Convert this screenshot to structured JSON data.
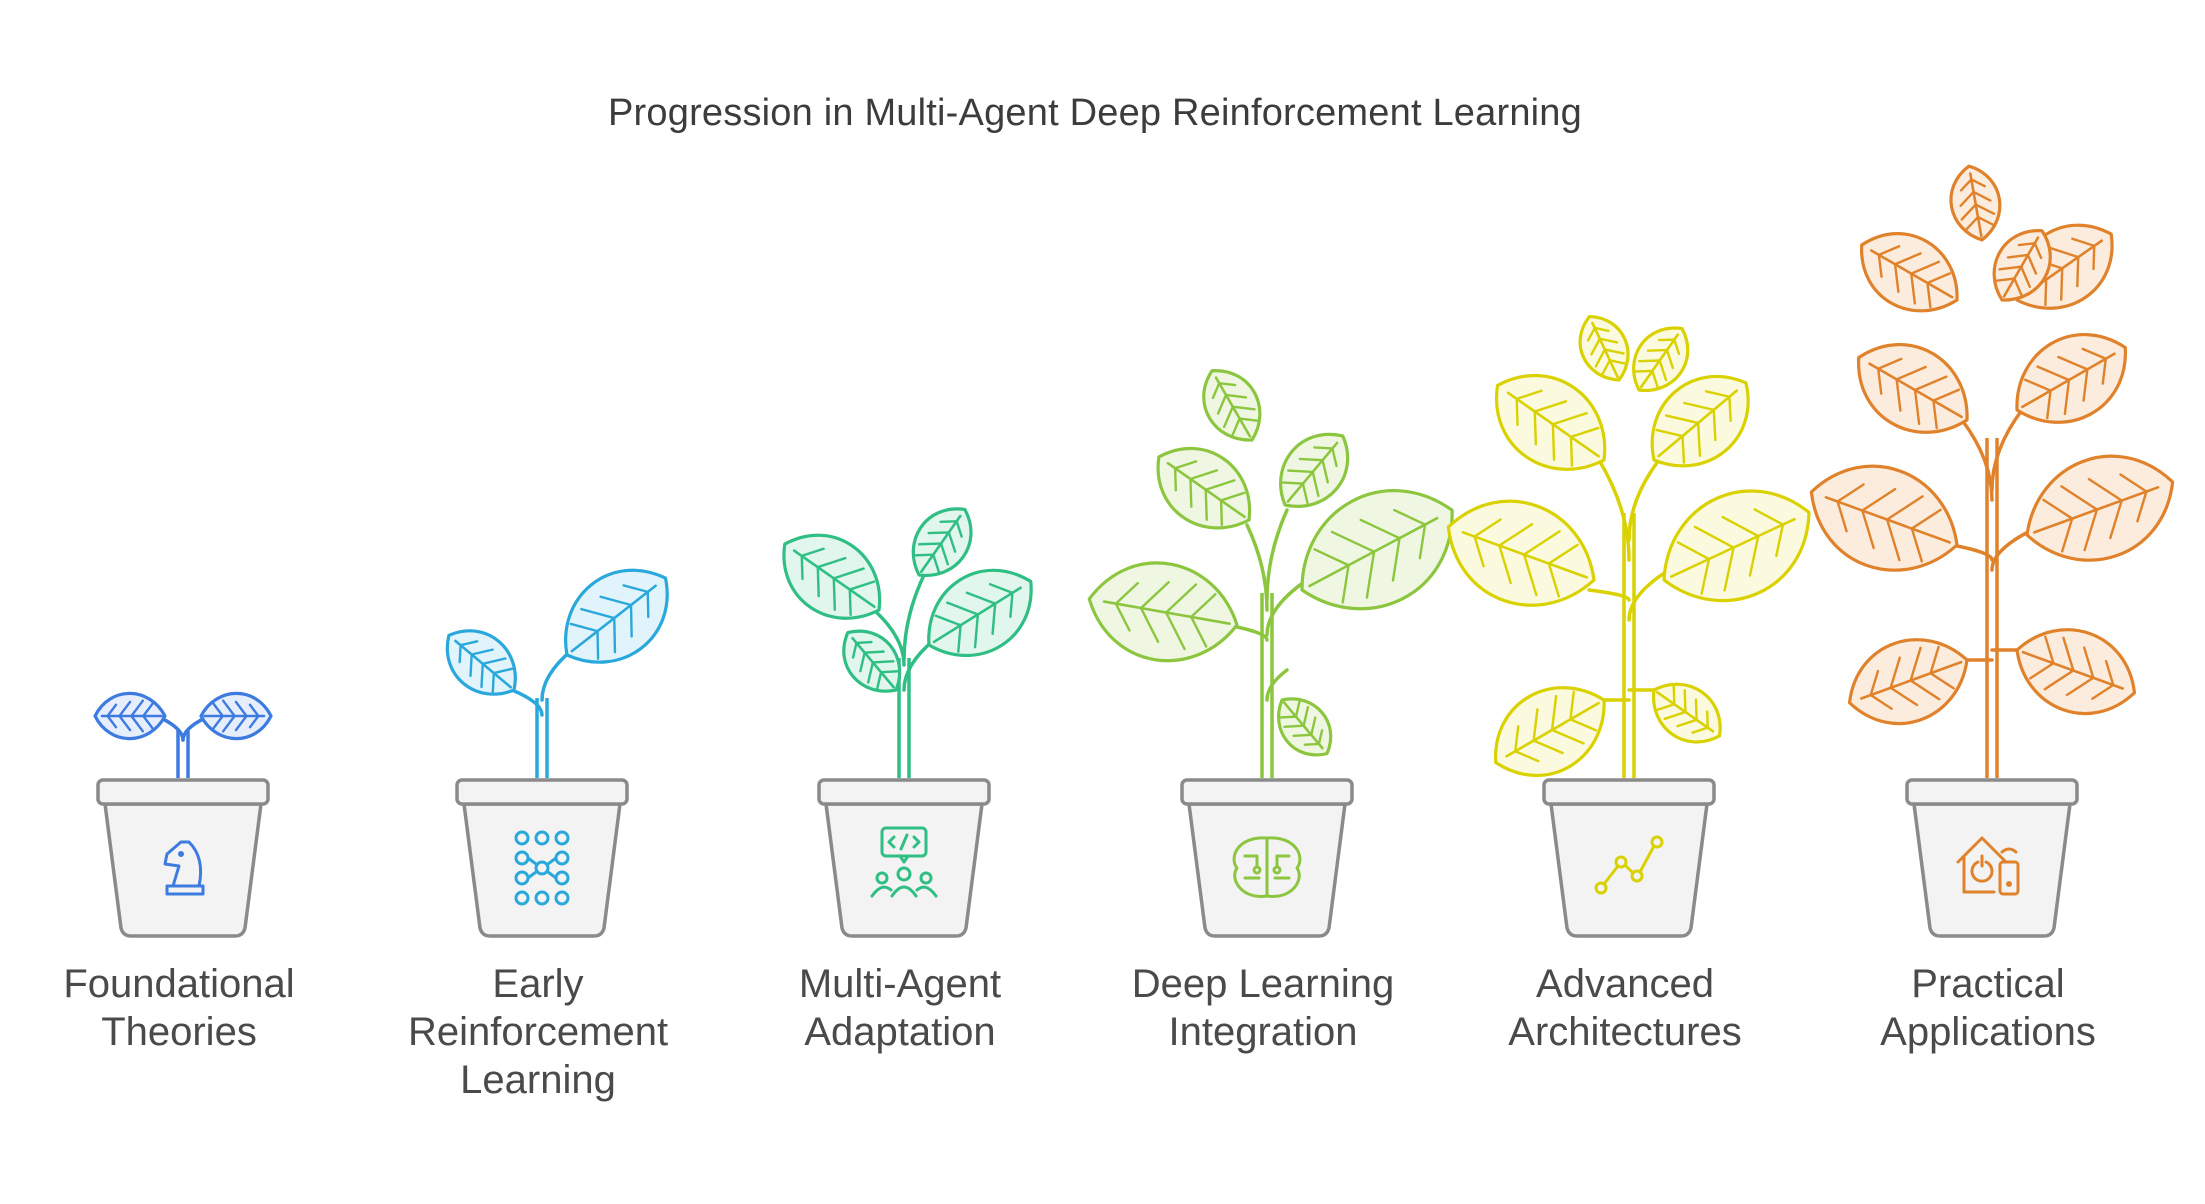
{
  "title": "Progression in Multi-Agent Deep Reinforcement Learning",
  "stages": [
    {
      "label_lines": [
        "Foundational",
        "Theories"
      ],
      "icon": "chess-knight-icon",
      "color": "#3d7be0",
      "fill": "#e6eefb",
      "growth": 1
    },
    {
      "label_lines": [
        "Early",
        "Reinforcement",
        "Learning"
      ],
      "icon": "neural-grid-icon",
      "color": "#2aa8dc",
      "fill": "#e2f4fb",
      "growth": 2
    },
    {
      "label_lines": [
        "Multi-Agent",
        "Adaptation"
      ],
      "icon": "team-code-icon",
      "color": "#2fbe83",
      "fill": "#e1f6ec",
      "growth": 3
    },
    {
      "label_lines": [
        "Deep Learning",
        "Integration"
      ],
      "icon": "brain-circuit-icon",
      "color": "#8cc63f",
      "fill": "#eff7e3",
      "growth": 4
    },
    {
      "label_lines": [
        "Advanced",
        "Architectures"
      ],
      "icon": "line-chart-icon",
      "color": "#d9d100",
      "fill": "#fbfade",
      "growth": 5
    },
    {
      "label_lines": [
        "Practical",
        "Applications"
      ],
      "icon": "smart-home-icon",
      "color": "#e0822c",
      "fill": "#fcecdd",
      "growth": 6
    }
  ]
}
